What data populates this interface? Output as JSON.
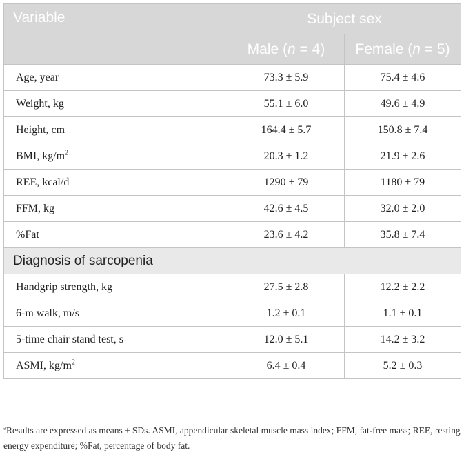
{
  "header": {
    "variable": "Variable",
    "subject_sex": "Subject sex",
    "male_prefix": "Male (",
    "female_prefix": "Female (",
    "n_var": "n",
    "male_n_suffix": " = 4)",
    "female_n_suffix": " = 5)"
  },
  "rows": [
    {
      "label": "Age, year",
      "male": "73.3 ± 5.9",
      "female": "75.4 ± 4.6"
    },
    {
      "label": "Weight, kg",
      "male": "55.1 ± 6.0",
      "female": "49.6 ± 4.9"
    },
    {
      "label": "Height, cm",
      "male": "164.4 ± 5.7",
      "female": "150.8 ± 7.4"
    },
    {
      "label": "BMI, kg/m",
      "label_sup": "2",
      "male": "20.3 ± 1.2",
      "female": "21.9 ± 2.6"
    },
    {
      "label": "REE, kcal/d",
      "male": "1290 ± 79",
      "female": "1180 ± 79"
    },
    {
      "label": "FFM, kg",
      "male": "42.6 ± 4.5",
      "female": "32.0 ± 2.0"
    },
    {
      "label": "%Fat",
      "male": "23.6 ± 4.2",
      "female": "35.8 ± 7.4"
    }
  ],
  "section_title": "Diagnosis of sarcopenia",
  "rows2": [
    {
      "label": "Handgrip strength, kg",
      "male": "27.5 ± 2.8",
      "female": "12.2 ± 2.2"
    },
    {
      "label": "6-m walk, m/s",
      "male": "1.2 ± 0.1",
      "female": "1.1 ± 0.1"
    },
    {
      "label": "5-time chair stand test, s",
      "male": "12.0 ± 5.1",
      "female": "14.2 ± 3.2"
    },
    {
      "label": "ASMI, kg/m",
      "label_sup": "2",
      "male": "6.4 ± 0.4",
      "female": "5.2 ± 0.3"
    }
  ],
  "footnote": {
    "marker": "a",
    "text": "Results are expressed as means ± SDs. ASMI, appendicular skeletal muscle mass index; FFM, fat-free mass; REE, resting energy expenditure; %Fat, percentage of body fat."
  }
}
